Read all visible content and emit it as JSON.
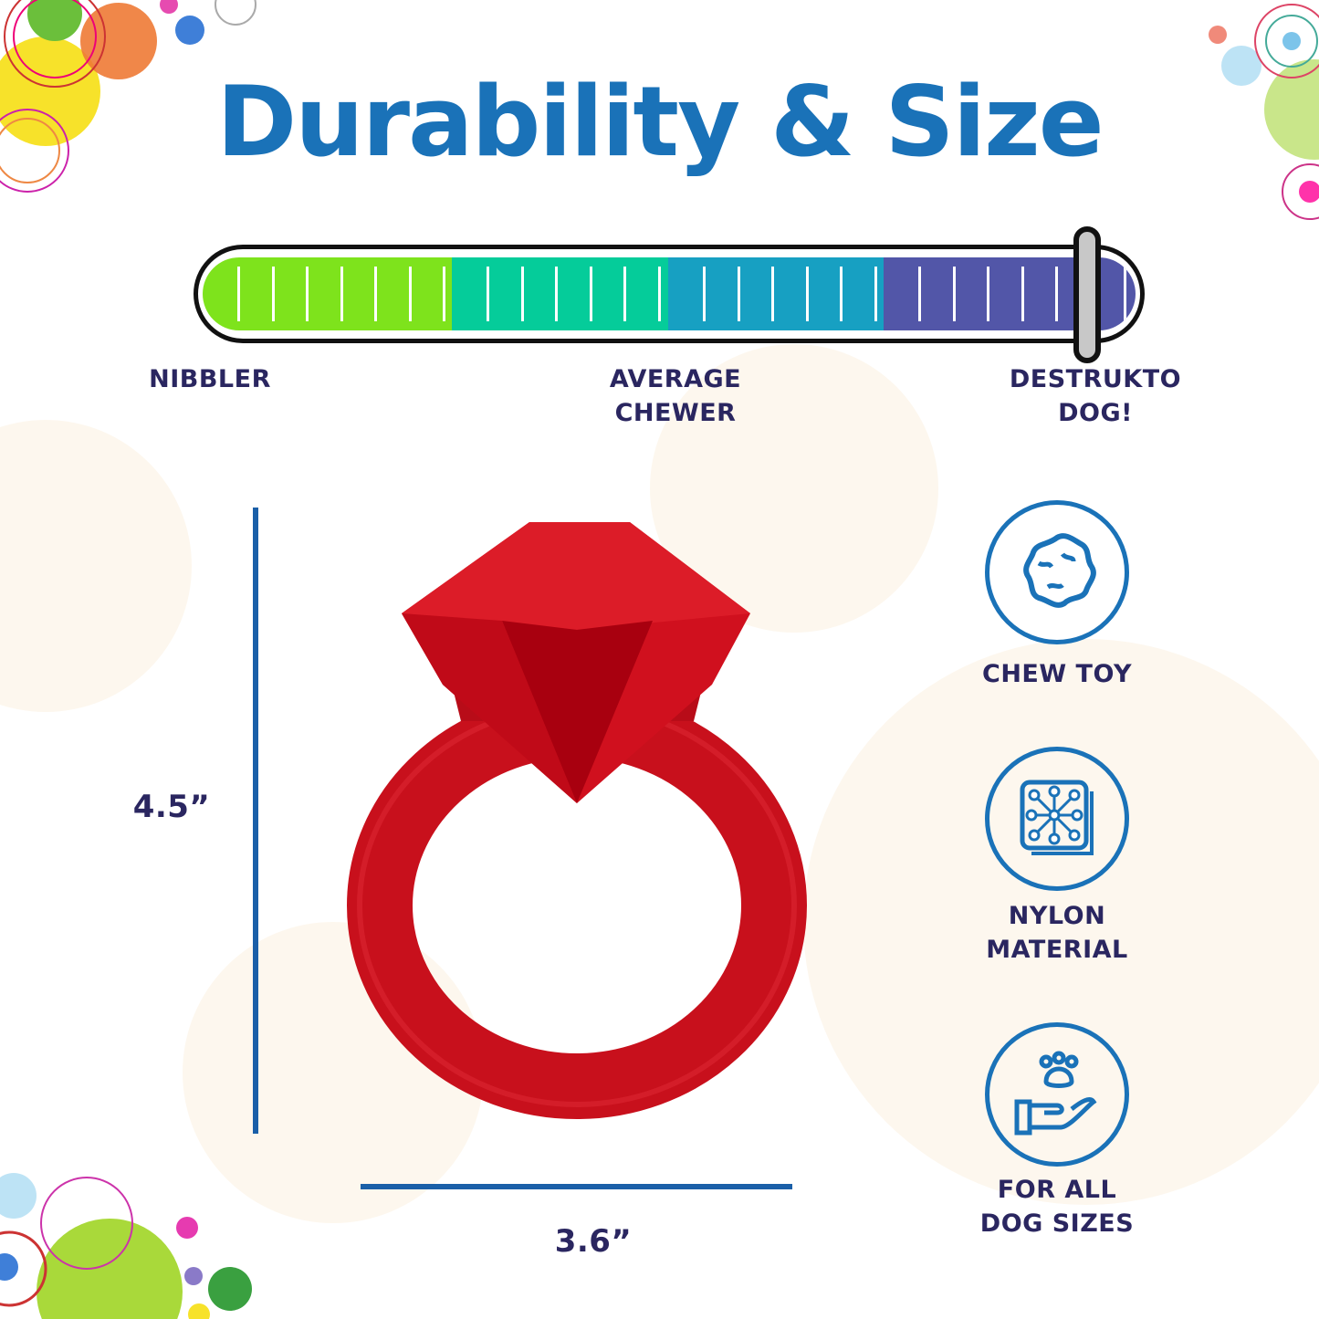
{
  "title": "Durability & Size",
  "durability": {
    "level": 0.96,
    "segment_colors": [
      "#7ee31c",
      "#05cc9a",
      "#17a0c2",
      "#5256a8"
    ],
    "labels": {
      "low": "NIBBLER",
      "mid": [
        "AVERAGE",
        "CHEWER"
      ],
      "high": [
        "DESTRUKTO",
        "DOG!"
      ]
    }
  },
  "dimensions": {
    "height": "4.5”",
    "width": "3.6”"
  },
  "product": {
    "name": "red diamond ring chew toy",
    "color": "#d0101e"
  },
  "features": [
    {
      "icon": "chew-toy-icon",
      "lines": [
        "CHEW TOY"
      ]
    },
    {
      "icon": "nylon-material-icon",
      "lines": [
        "NYLON",
        "MATERIAL"
      ]
    },
    {
      "icon": "paw-hand-icon",
      "lines": [
        "FOR ALL",
        "DOG SIZES"
      ]
    }
  ],
  "colors": {
    "title": "#1a72b8",
    "text": "#2a2660",
    "accent": "#1a5fa8"
  }
}
